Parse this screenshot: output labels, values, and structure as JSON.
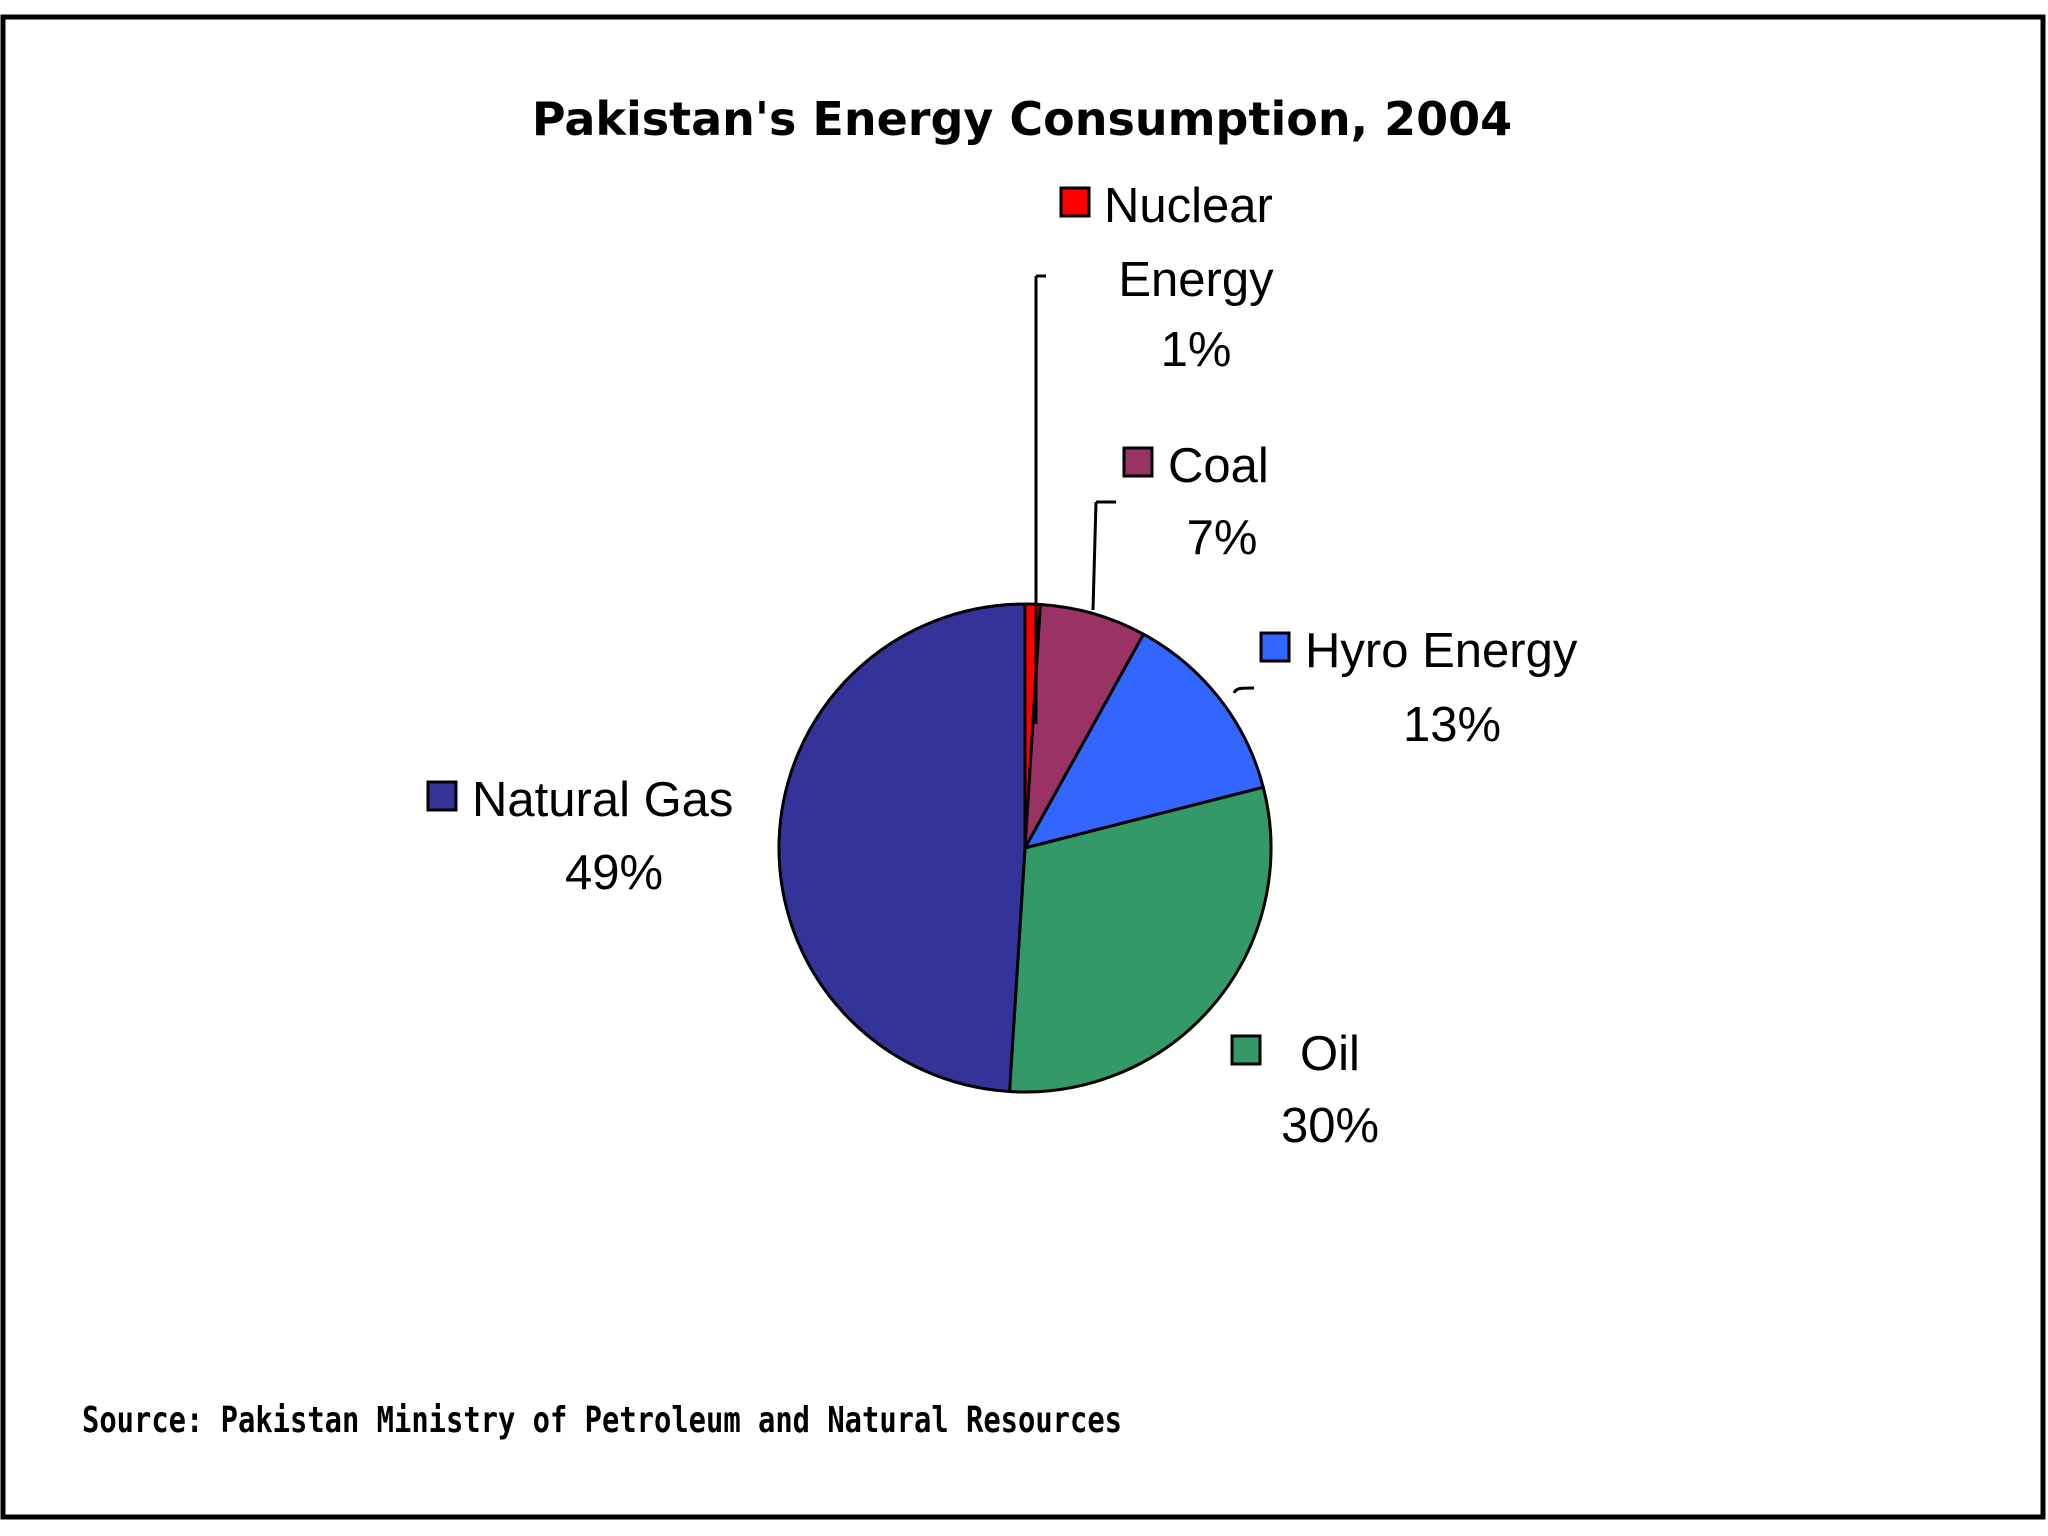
{
  "chart_data": {
    "type": "pie",
    "title": "Pakistan's Energy Consumption, 2004",
    "source": "Source: Pakistan Ministry of Petroleum and Natural Resources",
    "start_angle_deg": 0,
    "direction": "clockwise",
    "slices": [
      {
        "key": "nuclear",
        "label_lines": [
          "Nuclear",
          "Energy"
        ],
        "value": 1,
        "value_label": "1%",
        "color": "#ff0000"
      },
      {
        "key": "coal",
        "label_lines": [
          "Coal"
        ],
        "value": 7,
        "value_label": "7%",
        "color": "#993366"
      },
      {
        "key": "hydro",
        "label_lines": [
          "Hyro Energy"
        ],
        "value": 13,
        "value_label": "13%",
        "color": "#3366ff"
      },
      {
        "key": "oil",
        "label_lines": [
          "Oil"
        ],
        "value": 30,
        "value_label": "30%",
        "color": "#339966"
      },
      {
        "key": "natural-gas",
        "label_lines": [
          "Natural Gas"
        ],
        "value": 49,
        "value_label": "49%",
        "color": "#333399"
      }
    ]
  }
}
